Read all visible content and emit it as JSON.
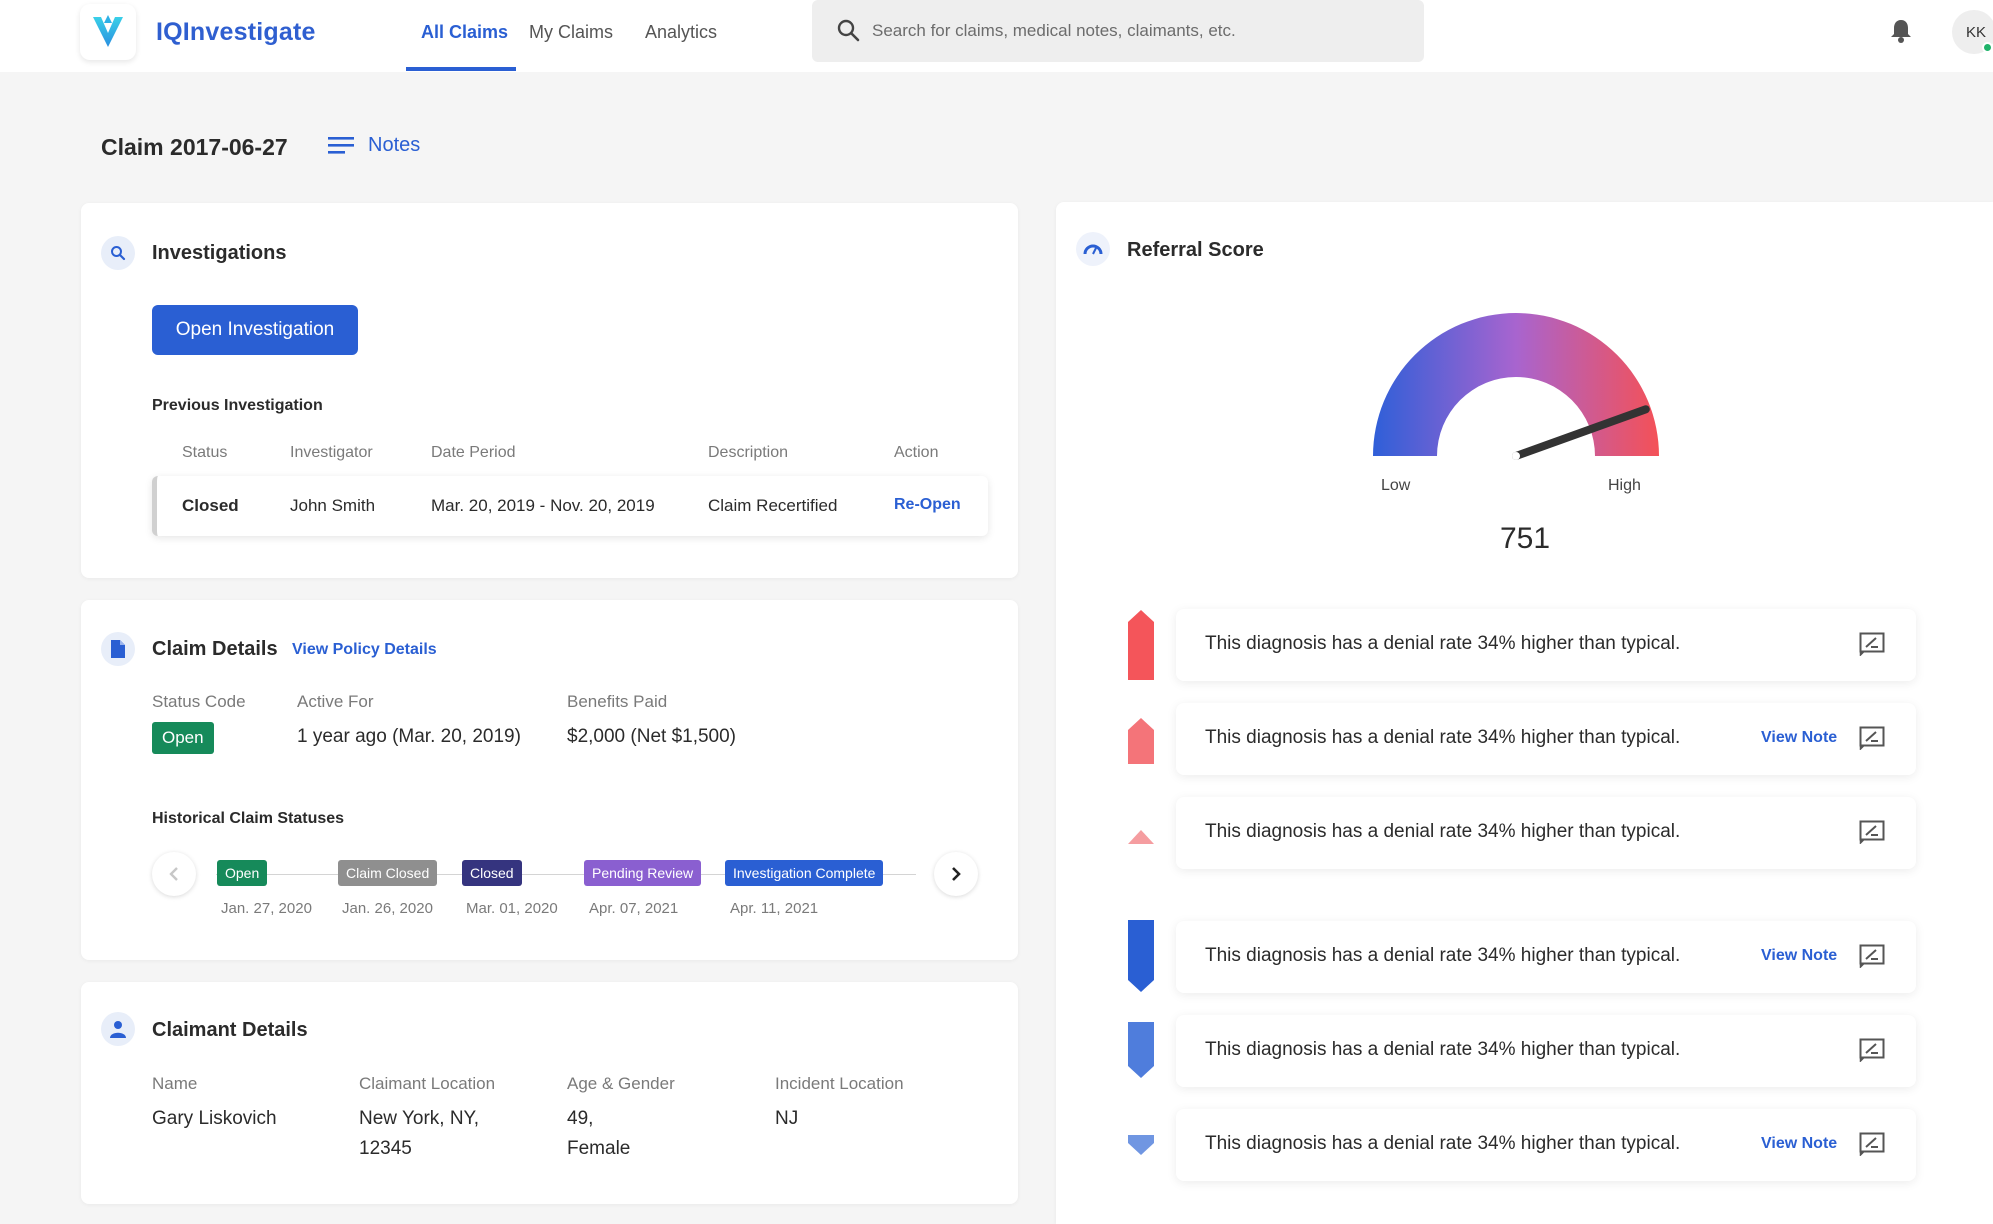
{
  "app": {
    "name": "IQInvestigate"
  },
  "nav": {
    "tabs": [
      "All Claims",
      "My Claims",
      "Analytics"
    ],
    "active": "All Claims"
  },
  "search": {
    "placeholder": "Search for claims, medical notes, claimants, etc."
  },
  "user": {
    "initials": "KK",
    "status": "online"
  },
  "page": {
    "title": "Claim 2017-06-27",
    "notes_label": "Notes"
  },
  "investigations": {
    "title": "Investigations",
    "open_button": "Open Investigation",
    "previous_title": "Previous Investigation",
    "columns": [
      "Status",
      "Investigator",
      "Date Period",
      "Description",
      "Action"
    ],
    "row": {
      "status": "Closed",
      "investigator": "John Smith",
      "date_period": "Mar. 20, 2019 - Nov. 20, 2019",
      "description": "Claim Recertified",
      "action": "Re-Open"
    }
  },
  "claim_details": {
    "title": "Claim Details",
    "policy_link": "View Policy Details",
    "status_code_label": "Status Code",
    "status_code": "Open",
    "active_for_label": "Active For",
    "active_for": "1 year ago (Mar. 20, 2019)",
    "benefits_label": "Benefits Paid",
    "benefits": "$2,000 (Net $1,500)",
    "history_title": "Historical Claim Statuses",
    "history": [
      {
        "status": "Open",
        "date": "Jan. 27, 2020",
        "color": "#168a5a"
      },
      {
        "status": "Claim Closed",
        "date": "Jan. 26, 2020",
        "color": "#8f8f8f"
      },
      {
        "status": "Closed",
        "date": "Mar. 01, 2020",
        "color": "#35347f"
      },
      {
        "status": "Pending Review",
        "date": "Apr. 07, 2021",
        "color": "#8a5fd0"
      },
      {
        "status": "Investigation Complete",
        "date": "Apr. 11, 2021",
        "color": "#2a5fd3"
      }
    ]
  },
  "claimant": {
    "title": "Claimant Details",
    "name_label": "Name",
    "name": "Gary Liskovich",
    "location_label": "Claimant Location",
    "location_line1": "New York, NY,",
    "location_line2": "12345",
    "age_label": "Age & Gender",
    "age_line1": "49,",
    "age_line2": "Female",
    "incident_label": "Incident Location",
    "incident": "NJ"
  },
  "referral": {
    "title": "Referral Score",
    "score": "751",
    "score_fraction": 0.89,
    "low_label": "Low",
    "high_label": "High",
    "view_note_label": "View Note",
    "items": [
      {
        "text": "This diagnosis has a denial rate 34% higher than typical.",
        "level": "high-strong",
        "has_note": false,
        "color": "#f4555a"
      },
      {
        "text": "This diagnosis has a denial rate 34% higher than typical.",
        "level": "high-medium",
        "has_note": true,
        "color": "#f47479"
      },
      {
        "text": "This diagnosis has a denial rate 34% higher than typical.",
        "level": "high-weak",
        "has_note": false,
        "color": "#f59da0"
      },
      {
        "text": "This diagnosis has a denial rate 34% higher than typical.",
        "level": "low-strong",
        "has_note": true,
        "color": "#2a5fd3"
      },
      {
        "text": "This diagnosis has a denial rate 34% higher than typical.",
        "level": "low-medium",
        "has_note": false,
        "color": "#4f7ddc"
      },
      {
        "text": "This diagnosis has a denial rate 34% higher than typical.",
        "level": "low-weak",
        "has_note": true,
        "color": "#7096e2"
      }
    ]
  }
}
